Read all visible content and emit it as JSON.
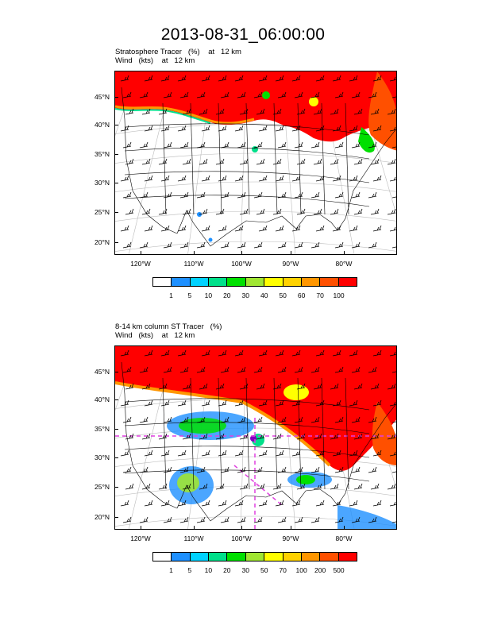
{
  "title": "2013-08-31_06:00:00",
  "panels": [
    {
      "line1": "Stratosphere Tracer   (%)    at   12 km",
      "line2": "Wind   (kts)    at   12 km",
      "colorbar_labels": [
        "1",
        "5",
        "10",
        "20",
        "30",
        "40",
        "50",
        "60",
        "70",
        "100"
      ]
    },
    {
      "line1": "8-14 km column ST Tracer   (%)",
      "line2": "Wind   (kts)    at   12 km",
      "colorbar_labels": [
        "1",
        "5",
        "10",
        "20",
        "30",
        "50",
        "70",
        "100",
        "200",
        "500"
      ]
    }
  ],
  "lat_labels": [
    "45°N",
    "40°N",
    "35°N",
    "30°N",
    "25°N",
    "20°N"
  ],
  "lon_labels": [
    "120°W",
    "110°W",
    "100°W",
    "90°W",
    "80°W"
  ],
  "colorbar_colors": [
    "#ffffff",
    "#1e90ff",
    "#00d2ff",
    "#00e08a",
    "#00e000",
    "#a0e632",
    "#ffff00",
    "#ffd200",
    "#ff9600",
    "#ff5000",
    "#ff0000"
  ]
}
